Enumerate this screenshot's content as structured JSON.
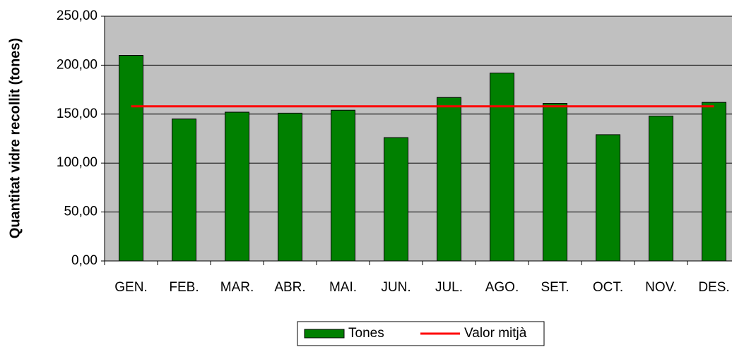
{
  "chart_data": {
    "type": "bar",
    "y_label": "Quantitat vidre recollit (tones)",
    "categories": [
      "GEN.",
      "FEB.",
      "MAR.",
      "ABR.",
      "MAI.",
      "JUN.",
      "JUL.",
      "AGO.",
      "SET.",
      "OCT.",
      "NOV.",
      "DES."
    ],
    "series": [
      {
        "name": "Tones",
        "color": "#008000",
        "type": "bar",
        "values": [
          210,
          145,
          152,
          151,
          154,
          126,
          167,
          192,
          161,
          129,
          148,
          162
        ]
      },
      {
        "name": "Valor mitjà",
        "color": "#ff0000",
        "type": "line",
        "values": [
          158,
          158,
          158,
          158,
          158,
          158,
          158,
          158,
          158,
          158,
          158,
          158
        ]
      }
    ],
    "ylim": [
      0,
      250
    ],
    "yticks": [
      {
        "value": 0,
        "label": "0,00"
      },
      {
        "value": 50,
        "label": "50,00"
      },
      {
        "value": 100,
        "label": "100,00"
      },
      {
        "value": 150,
        "label": "150,00"
      },
      {
        "value": 200,
        "label": "200,00"
      },
      {
        "value": 250,
        "label": "250,00"
      }
    ],
    "grid": true,
    "plot_background": "#c0c0c0",
    "legend": "bottom"
  }
}
